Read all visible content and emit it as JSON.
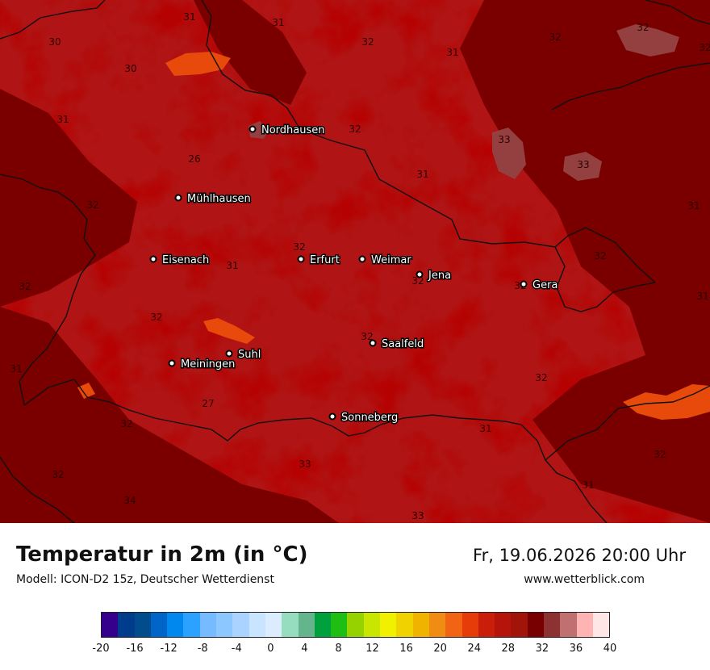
{
  "map": {
    "cities": [
      {
        "name": "Nordhausen"
      },
      {
        "name": "Mühlhausen"
      },
      {
        "name": "Eisenach"
      },
      {
        "name": "Erfurt"
      },
      {
        "name": "Weimar"
      },
      {
        "name": "Jena"
      },
      {
        "name": "Gera"
      },
      {
        "name": "Saalfeld"
      },
      {
        "name": "Suhl"
      },
      {
        "name": "Meiningen"
      },
      {
        "name": "Sonneberg"
      }
    ],
    "temperature_labels": [
      "31",
      "31",
      "30",
      "32",
      "30",
      "32",
      "31",
      "32",
      "32",
      "31",
      "33",
      "26",
      "33",
      "31",
      "32",
      "31",
      "32",
      "32",
      "31",
      "32",
      "32",
      "31",
      "32",
      "32",
      "32",
      "32",
      "31",
      "32",
      "32",
      "27",
      "31",
      "32",
      "33",
      "31",
      "32",
      "34",
      "33"
    ],
    "colors": {
      "base": "#b01414",
      "dark": "#7a0000",
      "warm": "#cc2a10",
      "hot": "#e84a0c",
      "veryhot": "#944040"
    }
  },
  "footer": {
    "title": "Temperatur in 2m (in °C)",
    "subtitle": "Modell: ICON-D2 15z, Deutscher Wetterdienst",
    "datetime": "Fr, 19.06.2026 20:00 Uhr",
    "website": "www.wetterblick.com"
  },
  "legend": {
    "colors": [
      "#34008c",
      "#003c8c",
      "#004c8c",
      "#0064c8",
      "#0088ee",
      "#2ba2ff",
      "#76baff",
      "#8cc8ff",
      "#aad4ff",
      "#c8e4ff",
      "#dcecff",
      "#96dcbe",
      "#64b48c",
      "#00a03c",
      "#1ebe14",
      "#96d200",
      "#c8e600",
      "#f0f000",
      "#f0d200",
      "#f0b400",
      "#f08c14",
      "#f06414",
      "#e63c0a",
      "#c81e0a",
      "#b4140a",
      "#a0140a",
      "#780000",
      "#8c3232",
      "#c07070",
      "#ffb4b4",
      "#ffe6e6"
    ],
    "ticks": [
      "-20",
      "-16",
      "-12",
      "-8",
      "-4",
      "0",
      "4",
      "8",
      "12",
      "16",
      "20",
      "24",
      "28",
      "32",
      "36",
      "40"
    ]
  }
}
